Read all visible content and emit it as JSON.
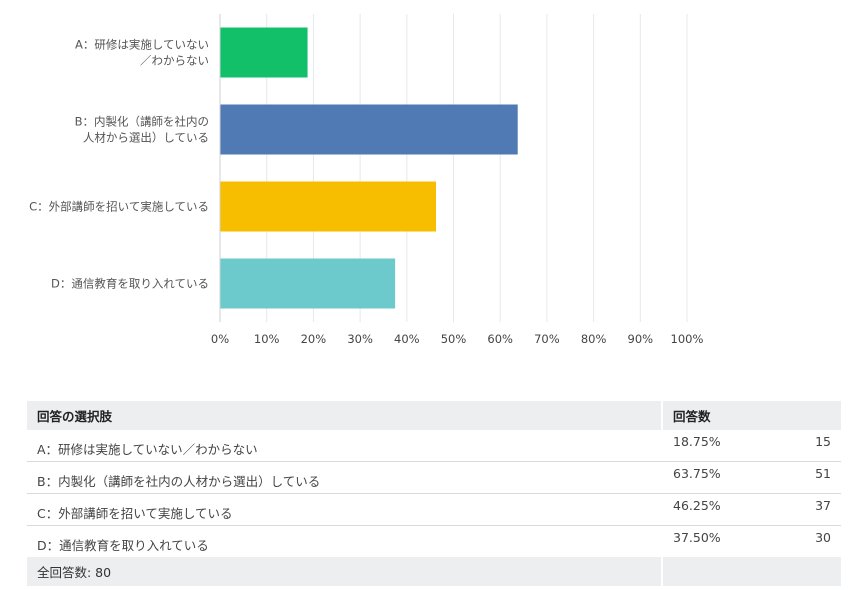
{
  "chart_data": {
    "type": "bar",
    "orientation": "horizontal",
    "categories": [
      [
        "A：研修は実施していない",
        "／わからない"
      ],
      [
        "B：内製化（講師を社内の",
        "人材から選出）している"
      ],
      [
        "C：外部講師を招いて実施している"
      ],
      [
        "D：通信教育を取り入れている"
      ]
    ],
    "values": [
      18.75,
      63.75,
      46.25,
      37.5
    ],
    "colors": [
      "#12c06a",
      "#4f7ab3",
      "#f7be00",
      "#6cc9cc"
    ],
    "xlim": [
      0,
      100
    ],
    "xticks": [
      0,
      10,
      20,
      30,
      40,
      50,
      60,
      70,
      80,
      90,
      100
    ],
    "tick_suffix": "%",
    "grid": true
  },
  "table": {
    "col_choice": "回答の選択肢",
    "col_answers": "回答数",
    "rows": [
      {
        "label": "A：研修は実施していない／わからない",
        "pct": "18.75%",
        "count": "15"
      },
      {
        "label": "B：内製化（講師を社内の人材から選出）している",
        "pct": "63.75%",
        "count": "51"
      },
      {
        "label": "C：外部講師を招いて実施している",
        "pct": "46.25%",
        "count": "37"
      },
      {
        "label": "D：通信教育を取り入れている",
        "pct": "37.50%",
        "count": "30"
      }
    ],
    "total": "全回答数: 80"
  }
}
